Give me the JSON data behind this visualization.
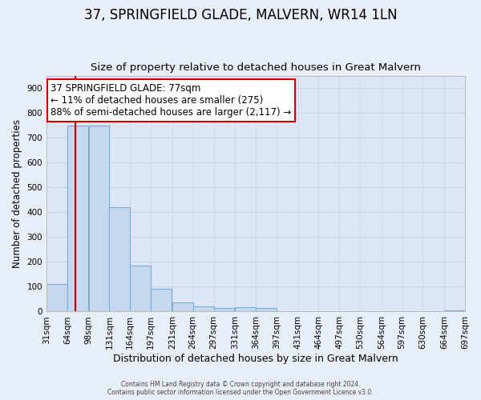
{
  "title": "37, SPRINGFIELD GLADE, MALVERN, WR14 1LN",
  "subtitle": "Size of property relative to detached houses in Great Malvern",
  "xlabel": "Distribution of detached houses by size in Great Malvern",
  "ylabel": "Number of detached properties",
  "bar_values": [
    110,
    750,
    750,
    420,
    185,
    92,
    38,
    20,
    15,
    17,
    15,
    0,
    0,
    0,
    0,
    0,
    0,
    0,
    0,
    5
  ],
  "bin_edges": [
    31,
    64,
    98,
    131,
    164,
    197,
    231,
    264,
    297,
    331,
    364,
    397,
    431,
    464,
    497,
    530,
    564,
    597,
    630,
    664,
    697
  ],
  "bin_labels": [
    "31sqm",
    "64sqm",
    "98sqm",
    "131sqm",
    "164sqm",
    "197sqm",
    "231sqm",
    "264sqm",
    "297sqm",
    "331sqm",
    "364sqm",
    "397sqm",
    "431sqm",
    "464sqm",
    "497sqm",
    "530sqm",
    "564sqm",
    "597sqm",
    "630sqm",
    "664sqm",
    "697sqm"
  ],
  "bar_color": "#c5d8ee",
  "bar_edge_color": "#7aadd4",
  "property_line_x": 77,
  "property_line_color": "#cc0000",
  "ylim": [
    0,
    950
  ],
  "yticks": [
    0,
    100,
    200,
    300,
    400,
    500,
    600,
    700,
    800,
    900
  ],
  "annotation_text": "37 SPRINGFIELD GLADE: 77sqm\n← 11% of detached houses are smaller (275)\n88% of semi-detached houses are larger (2,117) →",
  "annotation_box_color": "#ffffff",
  "annotation_box_edge": "#cc0000",
  "footer_line1": "Contains HM Land Registry data © Crown copyright and database right 2024.",
  "footer_line2": "Contains public sector information licensed under the Open Government Licence v3.0.",
  "background_color": "#e8eef8",
  "plot_bg_color": "#dce6f5",
  "grid_color": "#c8d4e8",
  "title_fontsize": 12,
  "subtitle_fontsize": 9.5,
  "xlabel_fontsize": 9,
  "ylabel_fontsize": 8.5,
  "tick_fontsize": 7.5,
  "ann_fontsize": 8.5
}
